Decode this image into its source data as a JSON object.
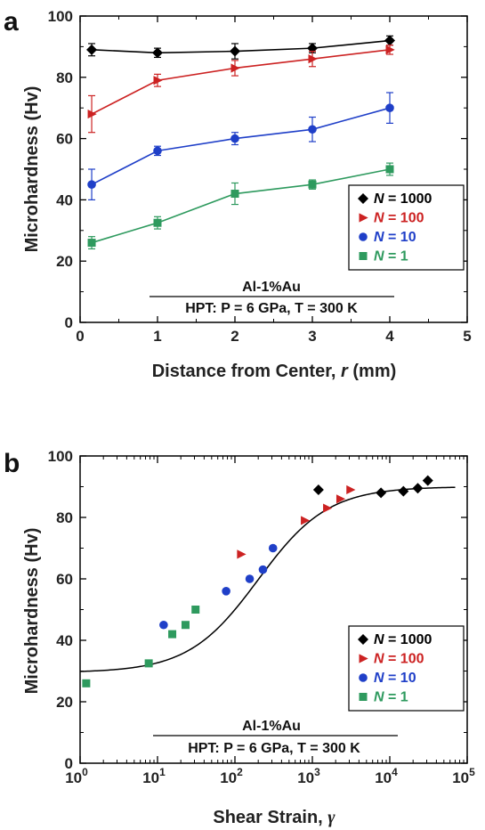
{
  "chart_data": [
    {
      "panel_label": "a",
      "type": "line",
      "xlabel_prefix": "Distance from Center, ",
      "xlabel_var": "r",
      "xlabel_suffix": " (mm)",
      "ylabel": "Microhardness (Hv)",
      "xlim": [
        0,
        5
      ],
      "ylim": [
        0,
        100
      ],
      "x_ticks": [
        "0",
        "1",
        "2",
        "3",
        "4",
        "5"
      ],
      "y_ticks": [
        "0",
        "20",
        "40",
        "60",
        "80",
        "100"
      ],
      "annotation_line1": "Al-1%Au",
      "annotation_line2": "HPT: P = 6 GPa, T = 300 K",
      "legend_position": "right",
      "series": [
        {
          "name": "N = 1000",
          "color": "#000000",
          "marker": "diamond",
          "x": [
            0.15,
            1,
            2,
            3,
            4
          ],
          "y": [
            89,
            88,
            88.5,
            89.5,
            92
          ],
          "err": [
            2,
            1.5,
            2.5,
            1.5,
            1.5
          ]
        },
        {
          "name": "N = 100",
          "color": "#cc2222",
          "marker": "triangle-right",
          "x": [
            0.15,
            1,
            2,
            3,
            4
          ],
          "y": [
            68,
            79,
            83,
            86,
            89
          ],
          "err": [
            6,
            2,
            2.5,
            2.5,
            1.5
          ]
        },
        {
          "name": "N = 10",
          "color": "#1f3fc8",
          "marker": "circle",
          "x": [
            0.15,
            1,
            2,
            3,
            4
          ],
          "y": [
            45,
            56,
            60,
            63,
            70
          ],
          "err": [
            5,
            1.5,
            2,
            4,
            5
          ]
        },
        {
          "name": "N = 1",
          "color": "#2e9a5e",
          "marker": "square",
          "x": [
            0.15,
            1,
            2,
            3,
            4
          ],
          "y": [
            26,
            32.5,
            42,
            45,
            50
          ],
          "err": [
            2,
            2,
            3.5,
            1.5,
            2
          ]
        }
      ]
    },
    {
      "panel_label": "b",
      "type": "scatter",
      "xlabel_prefix": "Shear Strain, ",
      "xlabel_var": "γ",
      "xlabel_suffix": "",
      "ylabel": "Microhardness (Hv)",
      "xscale": "log",
      "xlim": [
        1,
        100000
      ],
      "ylim": [
        0,
        100
      ],
      "x_ticks": [
        "10",
        "10",
        "10",
        "10",
        "10",
        "10"
      ],
      "x_tick_exponents": [
        "0",
        "1",
        "2",
        "3",
        "4",
        "5"
      ],
      "y_ticks": [
        "0",
        "20",
        "40",
        "60",
        "80",
        "100"
      ],
      "annotation_line1": "Al-1%Au",
      "annotation_line2": "HPT: P = 6 GPa, T = 300 K",
      "legend_position": "bottom-right",
      "fit_curve": {
        "low": 29.5,
        "high": 90,
        "midpoint": 200,
        "width_decades": 0.45
      },
      "series": [
        {
          "name": "N = 1000",
          "color": "#000000",
          "marker": "diamond",
          "x": [
            1200,
            7700,
            15000,
            23000,
            31000
          ],
          "y": [
            89,
            88,
            88.5,
            89.5,
            92
          ]
        },
        {
          "name": "N = 100",
          "color": "#cc2222",
          "marker": "triangle-right",
          "x": [
            120,
            800,
            1550,
            2300,
            3100
          ],
          "y": [
            68,
            79,
            83,
            86,
            89
          ]
        },
        {
          "name": "N = 10",
          "color": "#1f3fc8",
          "marker": "circle",
          "x": [
            12,
            77,
            155,
            230,
            310
          ],
          "y": [
            45,
            56,
            60,
            63,
            70
          ]
        },
        {
          "name": "N = 1",
          "color": "#2e9a5e",
          "marker": "square",
          "x": [
            1.2,
            7.7,
            15.5,
            23,
            31
          ],
          "y": [
            26,
            32.5,
            42,
            45,
            50
          ]
        }
      ]
    }
  ]
}
